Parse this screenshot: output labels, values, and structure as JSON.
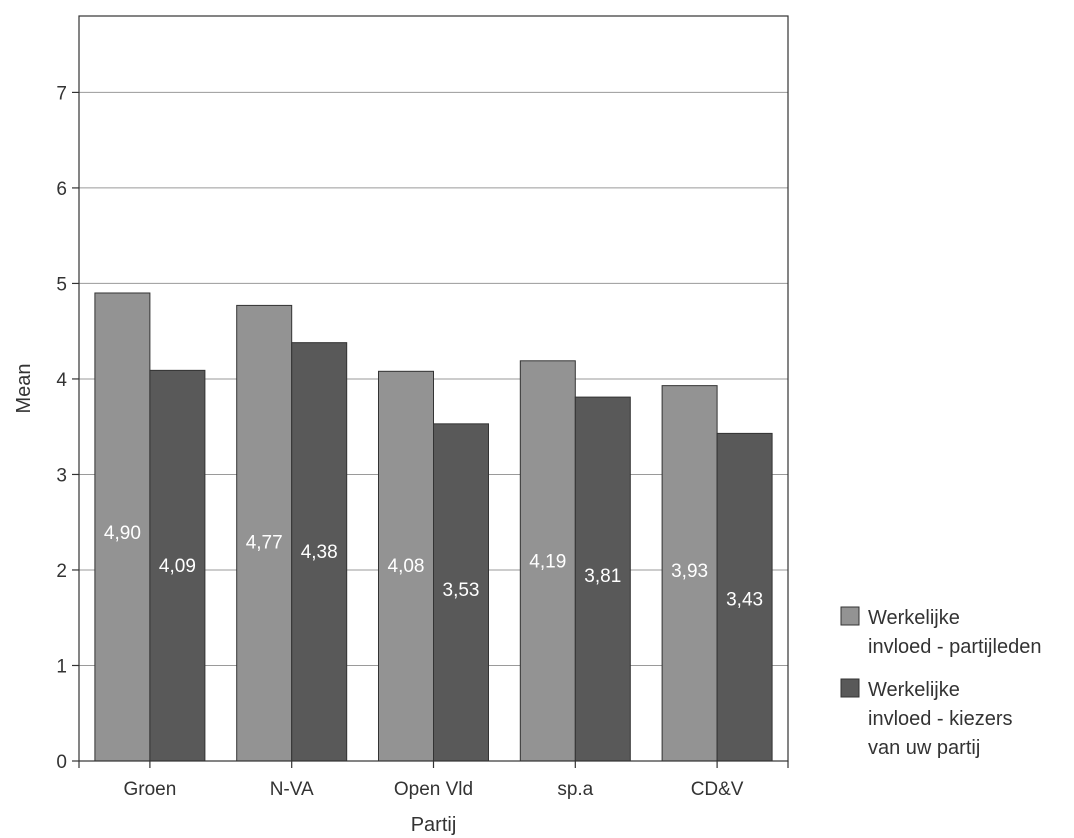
{
  "chart_data": {
    "type": "bar",
    "title": "",
    "xlabel": "Partij",
    "ylabel": "Mean",
    "ylim": [
      0,
      7.8
    ],
    "yticks": [
      0,
      1,
      2,
      3,
      4,
      5,
      6,
      7
    ],
    "grid": true,
    "legend_position": "bottom-right",
    "categories": [
      "Groen",
      "N-VA",
      "Open Vld",
      "sp.a",
      "CD&V"
    ],
    "series": [
      {
        "name": "Werkelijke invloed - partijleden",
        "legend_lines": [
          "Werkelijke",
          "invloed - partijleden"
        ],
        "color": "#939393",
        "values": [
          4.9,
          4.77,
          4.08,
          4.19,
          3.93
        ],
        "labels": [
          "4,90",
          "4,77",
          "4,08",
          "4,19",
          "3,93"
        ]
      },
      {
        "name": "Werkelijke invloed - kiezers van uw partij",
        "legend_lines": [
          "Werkelijke",
          "invloed - kiezers",
          "van uw partij"
        ],
        "color": "#595959",
        "values": [
          4.09,
          4.38,
          3.53,
          3.81,
          3.43
        ],
        "labels": [
          "4,09",
          "4,38",
          "3,53",
          "3,81",
          "3,43"
        ]
      }
    ]
  }
}
